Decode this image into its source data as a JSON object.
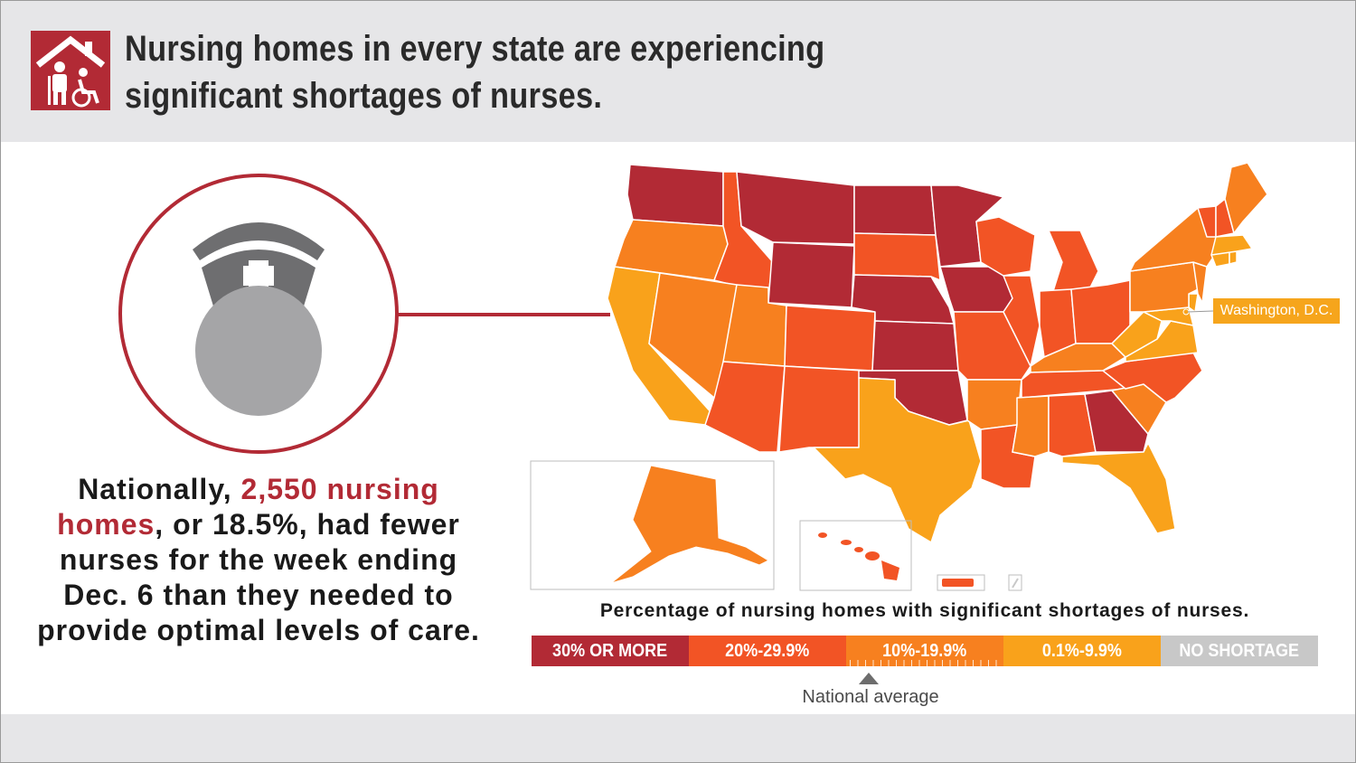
{
  "header": {
    "title_line1": "Nursing homes in every state are experiencing",
    "title_line2": "significant shortages of nurses.",
    "icon": "nursing-home-icon"
  },
  "stat": {
    "part1": "Nationally, ",
    "highlight": "2,550 nursing homes",
    "part2": ", or 18.5%, had fewer nurses for the week ending Dec. 6 than they needed to provide optimal levels of care."
  },
  "map": {
    "dc_label": "Washington, D.C.",
    "legend_title": "Percentage of nursing homes with significant shortages of nurses.",
    "national_average_label": "National average",
    "national_average_percent": 18.5,
    "legend": [
      {
        "label": "30% OR MORE",
        "color": "#b22a35"
      },
      {
        "label": "20%-29.9%",
        "color": "#f25425"
      },
      {
        "label": "10%-19.9%",
        "color": "#f7801f"
      },
      {
        "label": "0.1%-9.9%",
        "color": "#f9a21b"
      },
      {
        "label": "NO SHORTAGE",
        "color": "#c8c8c8"
      }
    ],
    "state_categories": {
      "30% OR MORE": [
        "WA",
        "MT",
        "WY",
        "ND",
        "MN",
        "NE",
        "KS",
        "IA",
        "OK",
        "GA"
      ],
      "20%-29.9%": [
        "ID",
        "SD",
        "CO",
        "AZ",
        "NM",
        "WI",
        "IL",
        "MO",
        "MI",
        "IN",
        "OH",
        "TN",
        "LA",
        "AL",
        "NC",
        "NH",
        "VT",
        "KY",
        "PR"
      ],
      "10%-19.9%": [
        "OR",
        "NV",
        "UT",
        "AR",
        "MS",
        "SC",
        "NY",
        "PA",
        "ME",
        "NJ",
        "AK",
        "HI"
      ],
      "0.1%-9.9%": [
        "CA",
        "TX",
        "FL",
        "WV",
        "VA",
        "MA",
        "CT",
        "RI",
        "MD",
        "DE",
        "DC"
      ],
      "NO SHORTAGE": [
        "VI"
      ]
    }
  }
}
